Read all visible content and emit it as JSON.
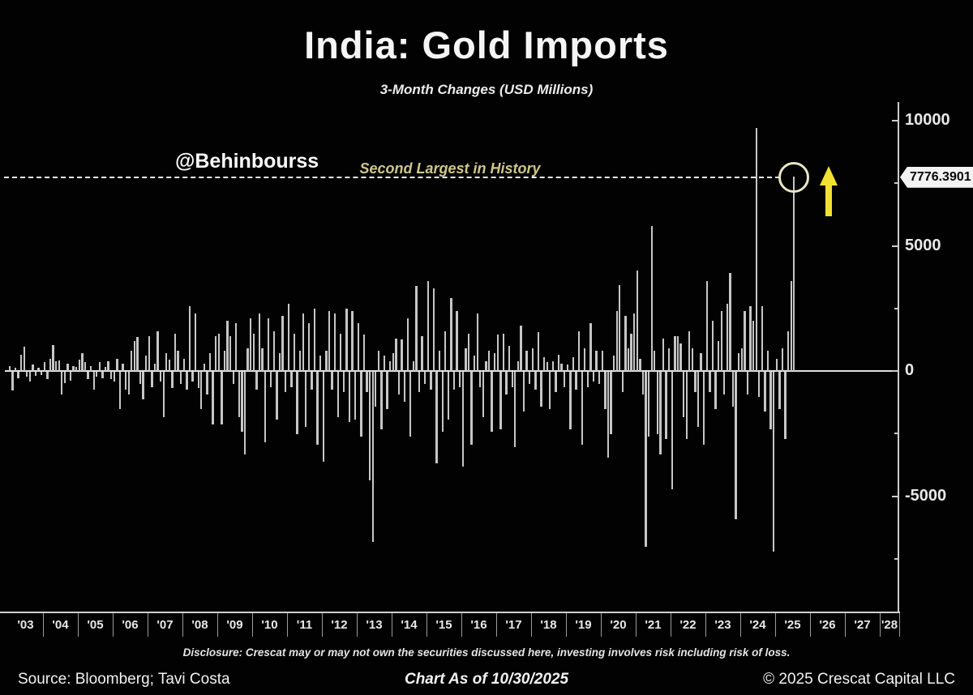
{
  "title": "India: Gold Imports",
  "subtitle": "3-Month Changes (USD Millions)",
  "watermark": "@Behinbourss",
  "annotation": {
    "label": "Second Largest in History",
    "value_label": "7776.3901",
    "value": 7776.3901
  },
  "colors": {
    "background": "#020202",
    "bar": "#c6c6c6",
    "axis": "#cccccc",
    "annotation_text": "#cfc78b",
    "highlight_circle": "#e9e6c4",
    "arrow": "#f2e033",
    "callout_bg": "#f3f3f3",
    "callout_text": "#080808"
  },
  "y_axis": {
    "major_ticks": [
      10000,
      5000,
      0,
      -5000
    ],
    "minor_ticks": [
      7500,
      2500,
      -2500,
      -7500
    ]
  },
  "x_axis": {
    "years": [
      "'03",
      "'04",
      "'05",
      "'06",
      "'07",
      "'08",
      "'09",
      "'10",
      "'11",
      "'12",
      "'13",
      "'14",
      "'15",
      "'16",
      "'17",
      "'18",
      "'19",
      "'20",
      "'21",
      "'22",
      "'23",
      "'24",
      "'25",
      "'26",
      "'27",
      "'28"
    ]
  },
  "footer": {
    "disclosure": "Disclosure: Crescat may or may not own the securities discussed here, investing involves risk including risk of loss.",
    "source": "Source: Bloomberg; Tavi Costa",
    "as_of": "Chart As of 10/30/2025",
    "copyright": "© 2025 Crescat Capital LLC"
  },
  "chart_data": {
    "type": "bar",
    "title": "India: Gold Imports",
    "subtitle": "3-Month Changes (USD Millions)",
    "unit": "USD millions",
    "frequency": "monthly",
    "start": "2003-01",
    "end": "2025-07",
    "ylim": [
      -9600,
      10700
    ],
    "y_major_ticks": [
      10000,
      5000,
      0,
      -5000
    ],
    "grid": false,
    "legend": false,
    "highlight": {
      "note": "last bar circled, second largest in history",
      "value": 7776.3901,
      "dashed_reference_value": 7776.3901
    },
    "values": [
      200,
      -750,
      120,
      -260,
      640,
      980,
      -180,
      -380,
      260,
      -160,
      140,
      -120,
      350,
      -300,
      500,
      1050,
      380,
      420,
      -900,
      -450,
      300,
      -350,
      200,
      150,
      450,
      700,
      350,
      -300,
      200,
      -700,
      -200,
      350,
      -250,
      150,
      400,
      -300,
      -400,
      500,
      -1500,
      300,
      -700,
      -900,
      800,
      1200,
      1350,
      -500,
      -1100,
      600,
      1400,
      -600,
      300,
      1600,
      -400,
      -1800,
      700,
      450,
      -650,
      1500,
      800,
      -500,
      500,
      -700,
      2600,
      -400,
      2300,
      -650,
      -1500,
      300,
      -900,
      700,
      -2100,
      1400,
      1500,
      -2100,
      800,
      2000,
      1400,
      -500,
      1900,
      -1800,
      -2400,
      -3300,
      900,
      2100,
      1500,
      -700,
      2300,
      900,
      -2800,
      2100,
      -600,
      1600,
      -1900,
      700,
      2200,
      -800,
      2700,
      -600,
      1500,
      -2500,
      800,
      2300,
      -2200,
      1900,
      -700,
      2500,
      -2900,
      600,
      -3600,
      800,
      2400,
      -700,
      2300,
      -1800,
      1500,
      -800,
      2480,
      -2000,
      2380,
      -1900,
      1900,
      -2600,
      1450,
      -800,
      -4330,
      -6800,
      -1400,
      800,
      -2300,
      600,
      -1500,
      400,
      700,
      1300,
      -900,
      1270,
      -1200,
      2100,
      -2600,
      400,
      3400,
      -800,
      1400,
      -500,
      3600,
      -700,
      3300,
      -3650,
      800,
      -2400,
      1600,
      -1900,
      2900,
      -700,
      2400,
      -600,
      -3800,
      900,
      1500,
      -2900,
      600,
      2300,
      -600,
      -1800,
      400,
      800,
      -2400,
      700,
      1450,
      -2300,
      1500,
      -900,
      1000,
      -600,
      -3000,
      400,
      1800,
      -1600,
      800,
      -500,
      900,
      -700,
      1550,
      -1400,
      550,
      350,
      -1500,
      400,
      -800,
      650,
      300,
      -600,
      250,
      -2300,
      550,
      -700,
      1600,
      -2900,
      900,
      -600,
      1900,
      -400,
      800,
      -500,
      800,
      -1500,
      -3430,
      -2500,
      600,
      2400,
      3430,
      -800,
      2200,
      900,
      1500,
      2300,
      4000,
      500,
      -900,
      -7000,
      -2600,
      5800,
      800,
      -2500,
      -3300,
      1300,
      -2700,
      900,
      -4700,
      1400,
      1400,
      1100,
      -1800,
      -2700,
      1600,
      900,
      -800,
      -2200,
      700,
      -2900,
      3600,
      -800,
      2000,
      -1500,
      1200,
      2400,
      -900,
      2700,
      3900,
      -1400,
      -5900,
      700,
      900,
      2400,
      -900,
      2600,
      2000,
      9700,
      -1000,
      2600,
      -1600,
      800,
      -2300,
      -7200,
      500,
      -1500,
      900,
      -2700,
      1600,
      3600,
      7776.3901
    ]
  }
}
